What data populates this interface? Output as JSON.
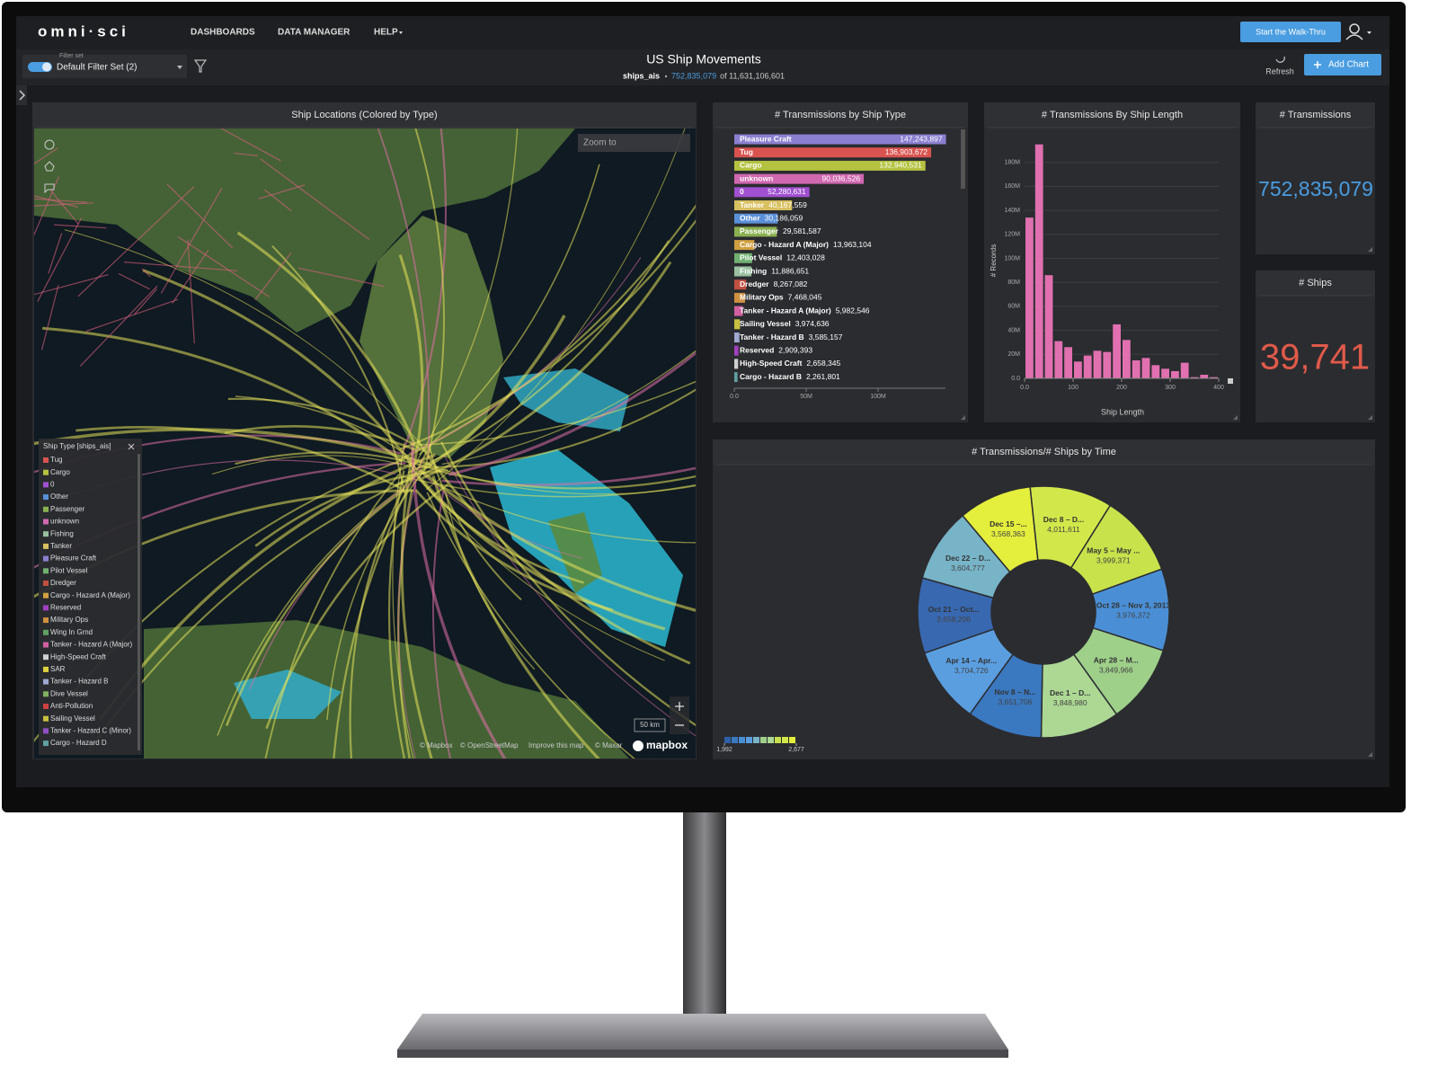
{
  "header": {
    "logo": "omni·sci",
    "nav": [
      "DASHBOARDS",
      "DATA MANAGER",
      "HELP"
    ],
    "walkthru_button": "Start the Walk-Thru"
  },
  "toolbar": {
    "filter_label": "Filter set",
    "filter_name": "Default Filter Set (2)",
    "title": "US Ship Movements",
    "table": "ships_ais",
    "filtered_count": "752,835,079",
    "total": "of 11,631,106,601",
    "refresh": "Refresh",
    "add_chart": "Add Chart"
  },
  "map": {
    "title": "Ship Locations (Colored by Type)",
    "zoom_placeholder": "Zoom to",
    "scale": "50 km",
    "attribution": [
      "© Mapbox",
      "© OpenStreetMap",
      "Improve this map",
      "© Maxar"
    ],
    "logo": "mapbox",
    "legend": {
      "title": "Ship Type [ships_ais]",
      "items": [
        {
          "label": "Tug",
          "color": "#d9534f"
        },
        {
          "label": "Cargo",
          "color": "#b5c240"
        },
        {
          "label": "0",
          "color": "#a050d0"
        },
        {
          "label": "Other",
          "color": "#5a90d8"
        },
        {
          "label": "Passenger",
          "color": "#8ab050"
        },
        {
          "label": "unknown",
          "color": "#d068b0"
        },
        {
          "label": "Fishing",
          "color": "#9ac0a0"
        },
        {
          "label": "Tanker",
          "color": "#d8c060"
        },
        {
          "label": "Pleasure Craft",
          "color": "#8a7fd0"
        },
        {
          "label": "Pilot Vessel",
          "color": "#70b070"
        },
        {
          "label": "Dredger",
          "color": "#c05040"
        },
        {
          "label": "Cargo - Hazard A (Major)",
          "color": "#d0a040"
        },
        {
          "label": "Reserved",
          "color": "#a040c0"
        },
        {
          "label": "Military Ops",
          "color": "#d09040"
        },
        {
          "label": "Wing In Grnd",
          "color": "#60a060"
        },
        {
          "label": "Tanker - Hazard A (Major)",
          "color": "#d060a0"
        },
        {
          "label": "High-Speed Craft",
          "color": "#d0d0d0"
        },
        {
          "label": "SAR",
          "color": "#e0d040"
        },
        {
          "label": "Tanker - Hazard B",
          "color": "#a0a8d0"
        },
        {
          "label": "Dive Vessel",
          "color": "#80b060"
        },
        {
          "label": "Anti-Pollution",
          "color": "#d04040"
        },
        {
          "label": "Sailing Vessel",
          "color": "#c8c040"
        },
        {
          "label": "Tanker - Hazard C (Minor)",
          "color": "#9050c0"
        },
        {
          "label": "Cargo - Hazard D",
          "color": "#60a0a0"
        }
      ]
    }
  },
  "bar_chart": {
    "title": "# Transmissions by Ship Type",
    "categories": [
      "Pleasure Craft",
      "Tug",
      "Cargo",
      "unknown",
      "0",
      "Tanker",
      "Other",
      "Passenger",
      "Cargo - Hazard A (Major)",
      "Pilot Vessel",
      "Fishing",
      "Dredger",
      "Military Ops",
      "Tanker - Hazard A (Major)",
      "Sailing Vessel",
      "Tanker - Hazard B",
      "Reserved",
      "High-Speed Craft",
      "Cargo - Hazard B"
    ],
    "values": [
      147243897,
      136903672,
      132940531,
      90036526,
      52280631,
      40167559,
      30186059,
      29581587,
      13963104,
      12403028,
      11886651,
      8267082,
      7468045,
      5982546,
      3974636,
      3585157,
      2909393,
      2658345,
      2261801
    ],
    "value_labels": [
      "147,243,897",
      "136,903,672",
      "132,940,531",
      "90,036,526",
      "52,280,631",
      "40,167,559",
      "30,186,059",
      "29,581,587",
      "13,963,104",
      "12,403,028",
      "11,886,651",
      "8,267,082",
      "7,468,045",
      "5,982,546",
      "3,974,636",
      "3,585,157",
      "2,909,393",
      "2,658,345",
      "2,261,801"
    ],
    "colors": [
      "#8a7fd0",
      "#d9534f",
      "#b5c240",
      "#d068b0",
      "#a050d0",
      "#d8c060",
      "#5a90d8",
      "#8ab050",
      "#d0a040",
      "#70b070",
      "#9ac0a0",
      "#c05040",
      "#d09040",
      "#d060a0",
      "#c8c040",
      "#a0a8d0",
      "#a040c0",
      "#d0d0d0",
      "#60a0a0"
    ],
    "xlim": [
      0,
      150000000
    ],
    "xticks": [
      {
        "value": 0,
        "label": "0.0"
      },
      {
        "value": 50000000,
        "label": "50M"
      },
      {
        "value": 100000000,
        "label": "100M"
      }
    ]
  },
  "histogram": {
    "title": "# Transmissions By Ship Length",
    "x_label": "Ship Length",
    "y_label": "# Records",
    "color": "#e070b0",
    "bins": [
      0,
      20,
      40,
      60,
      80,
      100,
      120,
      140,
      160,
      180,
      200,
      220,
      240,
      260,
      280,
      300,
      320,
      340,
      360,
      380,
      400
    ],
    "counts": [
      134000000,
      195000000,
      86000000,
      31000000,
      26000000,
      14000000,
      19000000,
      23000000,
      22000000,
      45000000,
      32000000,
      15000000,
      17000000,
      11000000,
      8000000,
      6000000,
      13000000,
      1000000,
      3000000,
      1000000
    ],
    "xlim": [
      0,
      400
    ],
    "xticks": [
      {
        "value": 0,
        "label": "0.0"
      },
      100,
      200,
      300,
      400
    ],
    "ylim": [
      0,
      200000000
    ],
    "yticks": [
      {
        "value": 0,
        "label": "0.0"
      },
      {
        "value": 20000000,
        "label": "20M"
      },
      {
        "value": 40000000,
        "label": "40M"
      },
      {
        "value": 60000000,
        "label": "60M"
      },
      {
        "value": 80000000,
        "label": "80M"
      },
      {
        "value": 100000000,
        "label": "100M"
      },
      {
        "value": 120000000,
        "label": "120M"
      },
      {
        "value": 140000000,
        "label": "140M"
      },
      {
        "value": 160000000,
        "label": "160M"
      },
      {
        "value": 180000000,
        "label": "180M"
      }
    ]
  },
  "kpi_transmissions": {
    "title": "# Transmissions",
    "value": "752,835,079",
    "color": "#4a9de0"
  },
  "kpi_ships": {
    "title": "# Ships",
    "value": "39,741",
    "color": "#e05a4a"
  },
  "donut": {
    "title": "# Transmissions/# Ships by Time",
    "categories": [
      "Dec 15 –...",
      "Dec 8 – D...",
      "May 5 – May ...",
      "Oct 28 – Nov 3, 2013",
      "Apr 28 – M...",
      "Dec 1 – D...",
      "Nov 8 – N...",
      "Apr 14 – Apr...",
      "Oct 21 – Oct...",
      "Dec 22 – D..."
    ],
    "values": [
      3568363,
      4011611,
      3999371,
      3976372,
      3849966,
      3848980,
      3651706,
      3704726,
      3658206,
      3604777
    ],
    "value_labels": [
      "3,568,363",
      "4,011,611",
      "3,999,371",
      "3,976,372",
      "3,849,966",
      "3,848,980",
      "3,651,706",
      "3,704,726",
      "3,658,206",
      "3,604,777"
    ],
    "colors": [
      "#e4ee3c",
      "#d2e84a",
      "#c8e24c",
      "#4a8fd6",
      "#9ed08a",
      "#acd894",
      "#3a78c0",
      "#5a9ee0",
      "#3868b0",
      "#78b4c8"
    ],
    "color_scale": {
      "colors": [
        "#2f5fa8",
        "#3a78c0",
        "#4a8fd6",
        "#5a9ee0",
        "#78b4c8",
        "#9ed08a",
        "#acd894",
        "#c8e24c",
        "#d2e84a",
        "#e4ee3c"
      ],
      "min": {
        "value": 1992,
        "label": "1,992"
      },
      "max": {
        "value": 2677,
        "label": "2,677"
      }
    }
  }
}
